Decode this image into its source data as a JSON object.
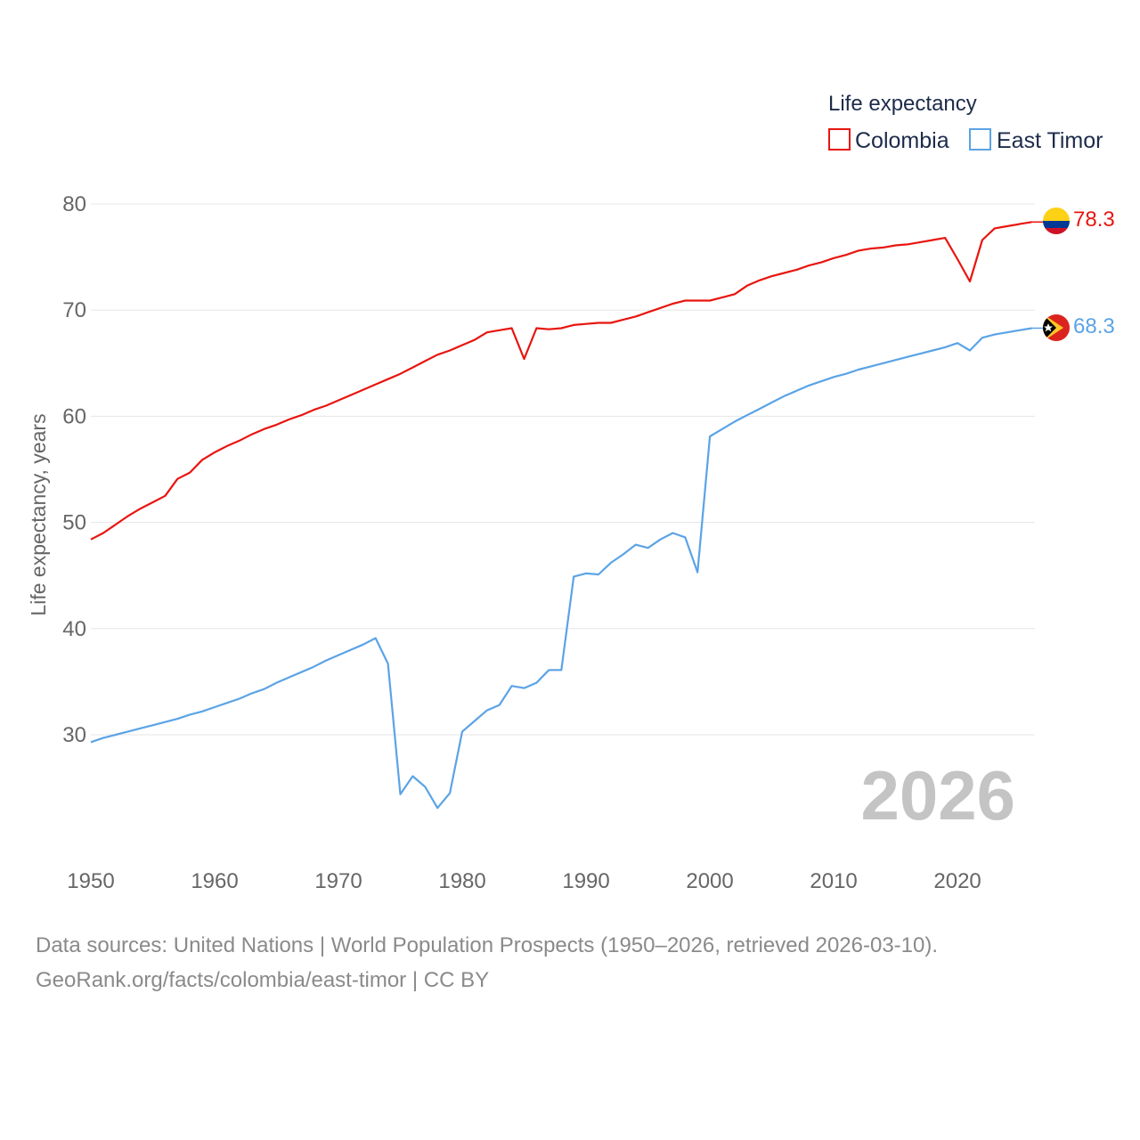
{
  "chart_data": {
    "type": "line",
    "ylabel": "Life expectancy, years",
    "xlim": [
      1950,
      2026
    ],
    "ylim": [
      20,
      82
    ],
    "x_ticks": [
      1950,
      1960,
      1970,
      1980,
      1990,
      2000,
      2010,
      2020
    ],
    "y_ticks": [
      30,
      40,
      50,
      60,
      70,
      80
    ],
    "grid": true,
    "legend": {
      "title": "Life expectancy",
      "position": "top-right"
    },
    "year_label": "2026",
    "series": [
      {
        "name": "Colombia",
        "color": "#e8150f",
        "end_label": "78.3",
        "flag_icon": "colombia-flag-icon",
        "x": [
          1950,
          1951,
          1952,
          1953,
          1954,
          1955,
          1956,
          1957,
          1958,
          1959,
          1960,
          1961,
          1962,
          1963,
          1964,
          1965,
          1966,
          1967,
          1968,
          1969,
          1970,
          1971,
          1972,
          1973,
          1974,
          1975,
          1976,
          1977,
          1978,
          1979,
          1980,
          1981,
          1982,
          1983,
          1984,
          1985,
          1986,
          1987,
          1988,
          1989,
          1990,
          1991,
          1992,
          1993,
          1994,
          1995,
          1996,
          1997,
          1998,
          1999,
          2000,
          2001,
          2002,
          2003,
          2004,
          2005,
          2006,
          2007,
          2008,
          2009,
          2010,
          2011,
          2012,
          2013,
          2014,
          2015,
          2016,
          2017,
          2018,
          2019,
          2020,
          2021,
          2022,
          2023,
          2024,
          2025,
          2026
        ],
        "values": [
          48.4,
          49.0,
          49.8,
          50.6,
          51.3,
          51.9,
          52.5,
          54.1,
          54.7,
          55.9,
          56.6,
          57.2,
          57.7,
          58.3,
          58.8,
          59.2,
          59.7,
          60.1,
          60.6,
          61.0,
          61.5,
          62.0,
          62.5,
          63.0,
          63.5,
          64.0,
          64.6,
          65.2,
          65.8,
          66.2,
          66.7,
          67.2,
          67.9,
          68.1,
          68.3,
          65.4,
          68.3,
          68.2,
          68.3,
          68.6,
          68.7,
          68.8,
          68.8,
          69.1,
          69.4,
          69.8,
          70.2,
          70.6,
          70.9,
          70.9,
          70.9,
          71.2,
          71.5,
          72.3,
          72.8,
          73.2,
          73.5,
          73.8,
          74.2,
          74.5,
          74.9,
          75.2,
          75.6,
          75.8,
          75.9,
          76.1,
          76.2,
          76.4,
          76.6,
          76.8,
          74.8,
          72.7,
          76.6,
          77.7,
          77.9,
          78.1,
          78.3
        ]
      },
      {
        "name": "East Timor",
        "color": "#5ba3e6",
        "end_label": "68.3",
        "flag_icon": "east-timor-flag-icon",
        "x": [
          1950,
          1951,
          1952,
          1953,
          1954,
          1955,
          1956,
          1957,
          1958,
          1959,
          1960,
          1961,
          1962,
          1963,
          1964,
          1965,
          1966,
          1967,
          1968,
          1969,
          1970,
          1971,
          1972,
          1973,
          1974,
          1975,
          1976,
          1977,
          1978,
          1979,
          1980,
          1981,
          1982,
          1983,
          1984,
          1985,
          1986,
          1987,
          1988,
          1989,
          1990,
          1991,
          1992,
          1993,
          1994,
          1995,
          1996,
          1997,
          1998,
          1999,
          2000,
          2001,
          2002,
          2003,
          2004,
          2005,
          2006,
          2007,
          2008,
          2009,
          2010,
          2011,
          2012,
          2013,
          2014,
          2015,
          2016,
          2017,
          2018,
          2019,
          2020,
          2021,
          2022,
          2023,
          2024,
          2025,
          2026
        ],
        "values": [
          29.3,
          29.7,
          30.0,
          30.3,
          30.6,
          30.9,
          31.2,
          31.5,
          31.9,
          32.2,
          32.6,
          33.0,
          33.4,
          33.9,
          34.3,
          34.9,
          35.4,
          35.9,
          36.4,
          37.0,
          37.5,
          38.0,
          38.5,
          39.1,
          36.7,
          24.4,
          26.1,
          25.1,
          23.1,
          24.5,
          30.3,
          31.3,
          32.3,
          32.8,
          34.6,
          34.4,
          34.9,
          36.1,
          36.1,
          44.9,
          45.2,
          45.1,
          46.2,
          47.0,
          47.9,
          47.6,
          48.4,
          49.0,
          48.6,
          45.3,
          58.1,
          58.8,
          59.5,
          60.1,
          60.7,
          61.3,
          61.9,
          62.4,
          62.9,
          63.3,
          63.7,
          64.0,
          64.4,
          64.7,
          65.0,
          65.3,
          65.6,
          65.9,
          66.2,
          66.5,
          66.9,
          66.2,
          67.4,
          67.7,
          67.9,
          68.1,
          68.3
        ]
      }
    ]
  },
  "footer": {
    "line1": "Data sources: United Nations | World Population Prospects (1950–2026, retrieved 2026-03-10).",
    "line2": "GeoRank.org/facts/colombia/east-timor | CC BY"
  }
}
